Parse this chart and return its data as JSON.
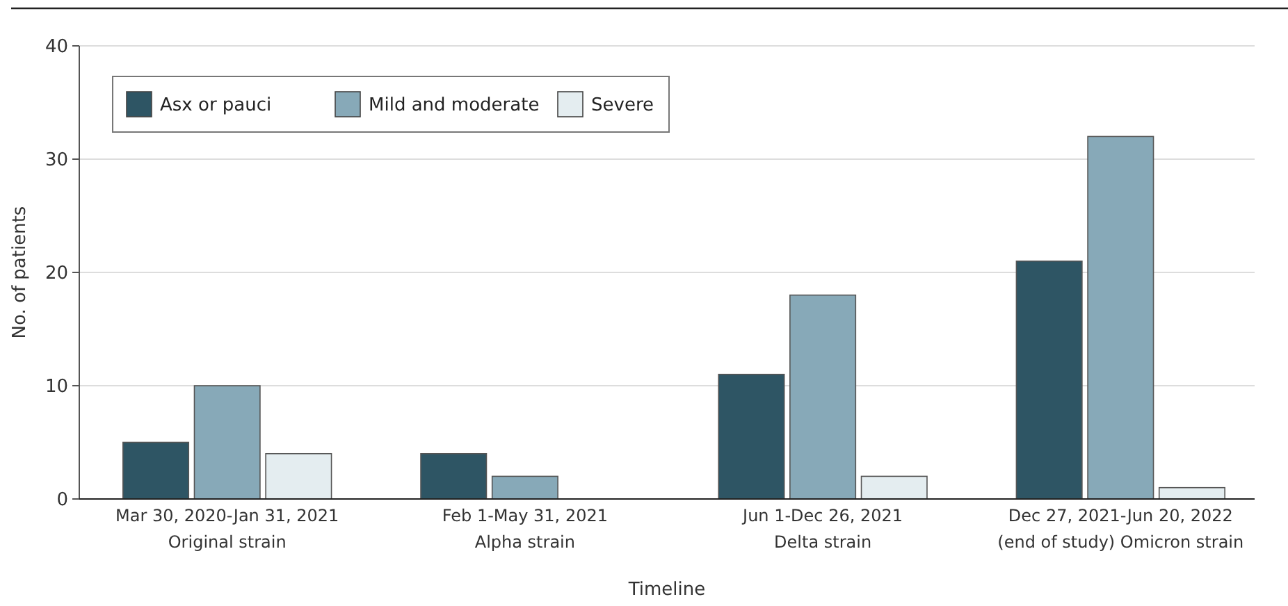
{
  "chart_data": {
    "type": "bar",
    "xlabel": "Timeline",
    "ylabel": "No. of patients",
    "categories": [
      "Mar 30, 2020-Jan 31, 2021\nOriginal strain",
      "Feb 1-May 31, 2021\nAlpha strain",
      "Jun 1-Dec 26, 2021\nDelta strain",
      "Dec 27, 2021-Jun 20, 2022\n(end of study) Omicron strain"
    ],
    "series": [
      {
        "name": "Asx or pauci",
        "color": "#2e5564",
        "values": [
          5,
          4,
          11,
          21
        ]
      },
      {
        "name": "Mild and moderate",
        "color": "#87a9b8",
        "values": [
          10,
          2,
          18,
          32
        ]
      },
      {
        "name": "Severe",
        "color": "#e4edf0",
        "values": [
          4,
          0,
          2,
          1
        ]
      }
    ],
    "ylim": [
      0,
      40
    ],
    "yticks": [
      0,
      10,
      20,
      30,
      40
    ],
    "grid": "y",
    "legend": "top left"
  }
}
